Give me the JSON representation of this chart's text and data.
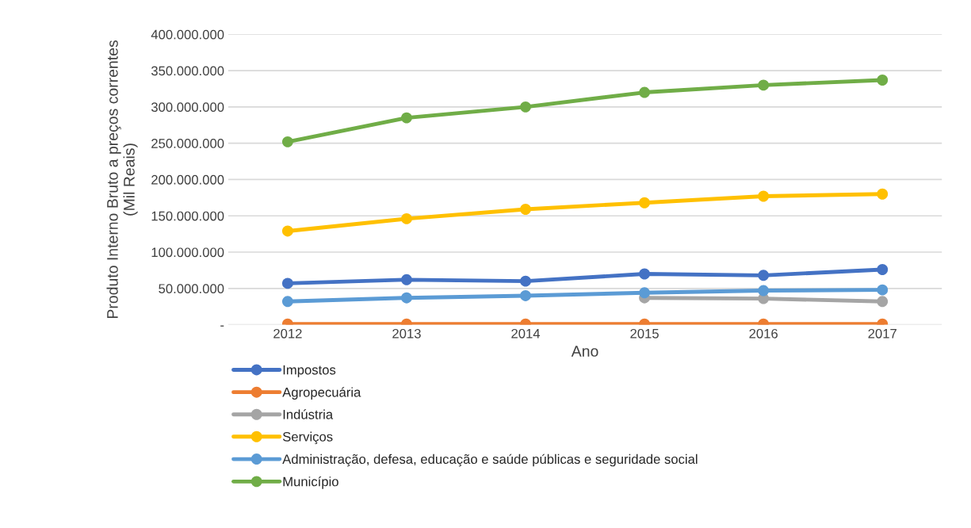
{
  "chart_data": {
    "type": "line",
    "xlabel": "Ano",
    "ylabel": "Produto Interno Bruto a preços correntes\n(Mil Reais)",
    "categories": [
      "2012",
      "2013",
      "2014",
      "2015",
      "2016",
      "2017"
    ],
    "series": [
      {
        "name": "Impostos",
        "color": "#4472c4",
        "values": [
          57000000,
          62000000,
          60000000,
          70000000,
          68000000,
          76000000
        ]
      },
      {
        "name": "Agropecuária",
        "color": "#ed7d31",
        "values": [
          1000000,
          1000000,
          1000000,
          1000000,
          1000000,
          1000000
        ]
      },
      {
        "name": "Indústria",
        "color": "#a5a5a5",
        "values": [
          null,
          null,
          null,
          37000000,
          36000000,
          32000000
        ]
      },
      {
        "name": "Serviços",
        "color": "#ffc000",
        "values": [
          129000000,
          146000000,
          159000000,
          168000000,
          177000000,
          180000000
        ]
      },
      {
        "name": "Administração, defesa, educação e saúde públicas e seguridade social",
        "color": "#5b9bd5",
        "values": [
          32000000,
          37000000,
          40000000,
          44000000,
          47000000,
          48000000
        ]
      },
      {
        "name": "Município",
        "color": "#70ad47",
        "values": [
          252000000,
          285000000,
          300000000,
          320000000,
          330000000,
          337000000
        ]
      }
    ],
    "ylim": [
      0,
      400000000
    ],
    "yticks": [
      {
        "value": 0,
        "label": "-"
      },
      {
        "value": 50000000,
        "label": "50.000.000"
      },
      {
        "value": 100000000,
        "label": "100.000.000"
      },
      {
        "value": 150000000,
        "label": "150.000.000"
      },
      {
        "value": 200000000,
        "label": "200.000.000"
      },
      {
        "value": 250000000,
        "label": "250.000.000"
      },
      {
        "value": 300000000,
        "label": "300.000.000"
      },
      {
        "value": 350000000,
        "label": "350.000.000"
      },
      {
        "value": 400000000,
        "label": "400.000.000"
      }
    ],
    "grid": "y",
    "legend": "bottom left",
    "marker": "circle",
    "line_style": "solid"
  }
}
